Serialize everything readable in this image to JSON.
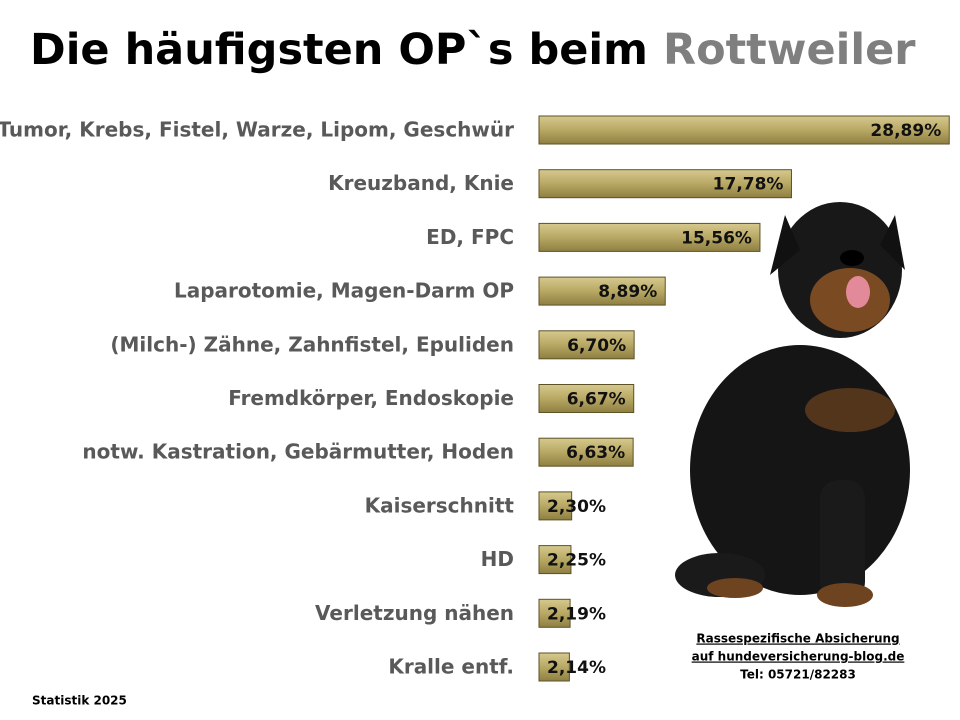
{
  "chart_data": {
    "type": "hbar",
    "title": "Die häufigsten OP`s beim",
    "title_highlight": "Rottweiler",
    "categories": [
      "Tumor, Krebs, Fistel, Warze, Lipom, Geschwür",
      "Kreuzband, Knie",
      "ED, FPC",
      "Laparotomie, Magen-Darm OP",
      "(Milch-) Zähne, Zahnfistel, Epuliden",
      "Fremdkörper, Endoskopie",
      "notw. Kastration, Gebärmutter, Hoden",
      "Kaiserschnitt",
      "HD",
      "Verletzung nähen",
      "Kralle entf."
    ],
    "values": [
      28.89,
      17.78,
      15.56,
      8.89,
      6.7,
      6.67,
      6.63,
      2.3,
      2.25,
      2.19,
      2.14
    ],
    "value_labels": [
      "28,89%",
      "17,78%",
      "15,56%",
      "8,89%",
      "6,70%",
      "6,67%",
      "6,63%",
      "2,30%",
      "2,25%",
      "2,19%",
      "2,14%"
    ],
    "color": "#b8a864",
    "footer_lines": [
      "Rassespezifische  Absicherung",
      "auf hundeversicherung-blog.de",
      "Tel: 05721/82283"
    ],
    "source": "Statistik 2025"
  }
}
